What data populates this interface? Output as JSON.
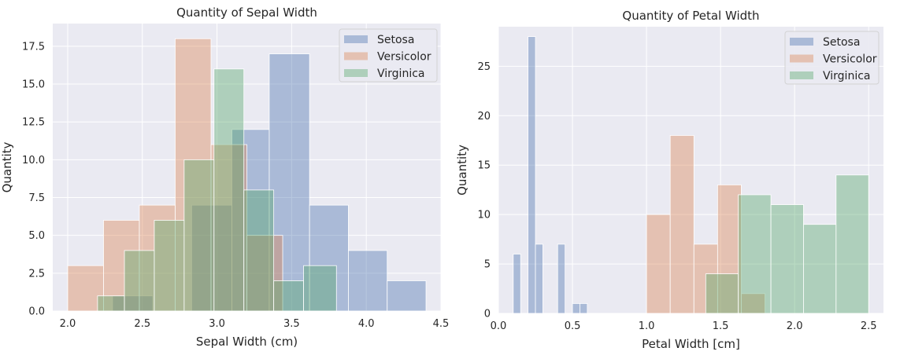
{
  "chart_data": [
    {
      "type": "bar",
      "title": "Quantity of Sepal Width",
      "xlabel": "Sepal Width (cm)",
      "ylabel": "Quantity",
      "xlim": [
        1.9,
        4.5
      ],
      "ylim": [
        0,
        19
      ],
      "xticks": [
        2.0,
        2.5,
        3.0,
        3.5,
        4.0,
        4.5
      ],
      "xtick_labels": [
        "2.0",
        "2.5",
        "3.0",
        "3.5",
        "4.0",
        "4.5"
      ],
      "yticks": [
        0,
        2.5,
        5,
        7.5,
        10,
        12.5,
        15,
        17.5
      ],
      "ytick_labels": [
        "0.0",
        "2.5",
        "5.0",
        "7.5",
        "10.0",
        "12.5",
        "15.0",
        "17.5"
      ],
      "grid": true,
      "legend": "top-right",
      "series": [
        {
          "name": "Setosa",
          "color": "#4c72b0",
          "bins": [
            [
              2.3,
              2.51,
              1
            ],
            [
              2.51,
              2.72,
              0
            ],
            [
              2.72,
              2.93,
              0
            ],
            [
              2.93,
              3.14,
              7
            ],
            [
              3.14,
              3.35,
              12
            ],
            [
              3.35,
              3.56,
              17
            ],
            [
              3.56,
              3.77,
              7
            ],
            [
              3.77,
              4.1,
              7
            ],
            [
              4.1,
              4.15,
              4
            ],
            [
              4.15,
              4.4,
              2
            ]
          ]
        },
        {
          "name": "Versicolor",
          "color": "#dd8452",
          "bins": [
            [
              2.0,
              2.12,
              3
            ],
            [
              2.12,
              2.36,
              6
            ],
            [
              2.36,
              2.6,
              7
            ],
            [
              2.6,
              2.84,
              18
            ],
            [
              2.84,
              3.08,
              11
            ],
            [
              3.08,
              3.32,
              5
            ],
            [
              3.32,
              3.4,
              0
            ]
          ]
        },
        {
          "name": "Virginica",
          "color": "#55a868",
          "bins": [
            [
              2.2,
              2.52,
              1
            ],
            [
              2.52,
              2.64,
              4
            ],
            [
              2.64,
              2.84,
              6
            ],
            [
              2.84,
              3.04,
              10
            ],
            [
              3.04,
              3.14,
              16
            ],
            [
              3.14,
              3.24,
              11
            ],
            [
              3.24,
              3.34,
              8
            ],
            [
              3.34,
              3.54,
              2
            ],
            [
              3.54,
              3.8,
              3
            ]
          ]
        }
      ],
      "series_overrides": [
        {
          "name": "Setosa",
          "bins": [
            [
              2.3,
              2.57,
              1
            ],
            [
              2.57,
              2.83,
              0
            ],
            [
              2.83,
              3.1,
              7
            ],
            [
              3.1,
              3.35,
              12
            ],
            [
              3.35,
              3.62,
              17
            ],
            [
              3.62,
              3.88,
              7
            ],
            [
              3.88,
              4.14,
              4
            ],
            [
              4.14,
              4.4,
              2
            ]
          ]
        },
        {
          "name": "Versicolor",
          "bins": [
            [
              2.0,
              2.24,
              3
            ],
            [
              2.24,
              2.48,
              6
            ],
            [
              2.48,
              2.72,
              7
            ],
            [
              2.72,
              2.96,
              18
            ],
            [
              2.96,
              3.2,
              11
            ],
            [
              3.2,
              3.44,
              5
            ]
          ]
        },
        {
          "name": "Virginica",
          "bins": [
            [
              2.2,
              2.38,
              1
            ],
            [
              2.38,
              2.58,
              4
            ],
            [
              2.58,
              2.78,
              6
            ],
            [
              2.78,
              2.98,
              10
            ],
            [
              2.98,
              3.18,
              16
            ],
            [
              3.18,
              3.38,
              8
            ],
            [
              3.38,
              3.58,
              2
            ],
            [
              3.58,
              3.8,
              3
            ]
          ]
        }
      ]
    },
    {
      "type": "bar",
      "title": "Quantity of Petal Width",
      "xlabel": "Petal Width [cm]",
      "ylabel": "Quantity",
      "xlim": [
        0,
        2.6
      ],
      "ylim": [
        0,
        29
      ],
      "xticks": [
        0,
        0.5,
        1.0,
        1.5,
        2.0,
        2.5
      ],
      "xtick_labels": [
        "0.0",
        "0.5",
        "1.0",
        "1.5",
        "2.0",
        "2.5"
      ],
      "yticks": [
        0,
        5,
        10,
        15,
        20,
        25
      ],
      "ytick_labels": [
        "0",
        "5",
        "10",
        "15",
        "20",
        "25"
      ],
      "grid": true,
      "legend": "top-right",
      "series": [
        {
          "name": "Setosa",
          "color": "#4c72b0",
          "bins": [
            [
              0.1,
              0.15,
              6
            ],
            [
              0.15,
              0.2,
              0
            ],
            [
              0.2,
              0.25,
              28
            ],
            [
              0.25,
              0.3,
              7
            ],
            [
              0.3,
              0.35,
              0
            ],
            [
              0.35,
              0.4,
              0
            ],
            [
              0.4,
              0.45,
              7
            ],
            [
              0.45,
              0.5,
              0
            ],
            [
              0.5,
              0.55,
              1
            ],
            [
              0.55,
              0.6,
              1
            ]
          ]
        },
        {
          "name": "Versicolor",
          "color": "#dd8452",
          "bins": [
            [
              1.0,
              1.16,
              10
            ],
            [
              1.16,
              1.32,
              18
            ],
            [
              1.32,
              1.48,
              7
            ],
            [
              1.48,
              1.64,
              13
            ],
            [
              1.64,
              1.8,
              2
            ]
          ]
        },
        {
          "name": "Virginica",
          "color": "#55a868",
          "bins": [
            [
              1.4,
              1.62,
              4
            ],
            [
              1.62,
              1.84,
              12
            ],
            [
              1.84,
              2.06,
              11
            ],
            [
              2.06,
              2.28,
              9
            ],
            [
              2.28,
              2.5,
              14
            ]
          ]
        }
      ]
    }
  ]
}
